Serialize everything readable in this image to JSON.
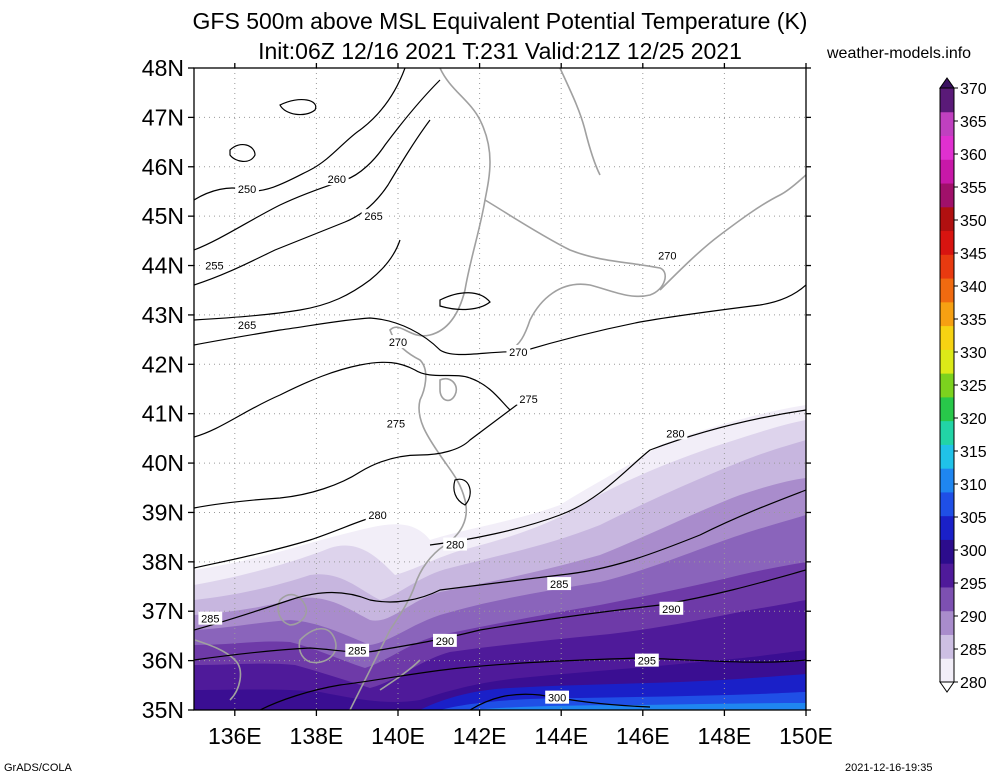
{
  "header": {
    "title_line1": "GFS 500m above MSL Equivalent Potential Temperature (K)",
    "title_line2": "Init:06Z 12/16 2021 T:231 Valid:21Z 12/25 2021",
    "site": "weather-models.info"
  },
  "footer": {
    "left": "GrADS/COLA",
    "right": "2021-12-16-19:35"
  },
  "chart_data": {
    "type": "heatmap",
    "title": "GFS 500m above MSL Equivalent Potential Temperature (K)",
    "subtitle": "Init:06Z 12/16 2021 T:231 Valid:21Z 12/25 2021",
    "xlabel": "",
    "ylabel": "",
    "xlim": [
      135,
      150
    ],
    "ylim": [
      35,
      48
    ],
    "x_ticks": [
      {
        "value": 136,
        "label": "136E"
      },
      {
        "value": 138,
        "label": "138E"
      },
      {
        "value": 140,
        "label": "140E"
      },
      {
        "value": 142,
        "label": "142E"
      },
      {
        "value": 144,
        "label": "144E"
      },
      {
        "value": 146,
        "label": "146E"
      },
      {
        "value": 148,
        "label": "148E"
      },
      {
        "value": 150,
        "label": "150E"
      }
    ],
    "y_ticks": [
      {
        "value": 35,
        "label": "35N"
      },
      {
        "value": 36,
        "label": "36N"
      },
      {
        "value": 37,
        "label": "37N"
      },
      {
        "value": 38,
        "label": "38N"
      },
      {
        "value": 39,
        "label": "39N"
      },
      {
        "value": 40,
        "label": "40N"
      },
      {
        "value": 41,
        "label": "41N"
      },
      {
        "value": 42,
        "label": "42N"
      },
      {
        "value": 43,
        "label": "43N"
      },
      {
        "value": 44,
        "label": "44N"
      },
      {
        "value": 45,
        "label": "45N"
      },
      {
        "value": 46,
        "label": "46N"
      },
      {
        "value": 47,
        "label": "47N"
      },
      {
        "value": 48,
        "label": "48N"
      }
    ],
    "grid": true,
    "legend": "right",
    "colorbar": {
      "levels": [
        280,
        285,
        290,
        295,
        300,
        305,
        310,
        315,
        320,
        325,
        330,
        335,
        340,
        345,
        350,
        355,
        360,
        365,
        370
      ],
      "colors": [
        "#f2eef8",
        "#cdbfe3",
        "#a98ccc",
        "#7d50b1",
        "#4f1a9a",
        "#2c0c8c",
        "#1a20c8",
        "#1f4fe6",
        "#1f86f0",
        "#20c2e8",
        "#22d4a6",
        "#28c84a",
        "#7cd21e",
        "#dcea18",
        "#f6d312",
        "#f6a012",
        "#f06a10",
        "#e83a10",
        "#d81410",
        "#b01010",
        "#a0106a",
        "#c818a8",
        "#e030d0",
        "#c040c0",
        "#5a1a78"
      ],
      "colors_above": [
        "#2a2a8a",
        "#3a3aa8"
      ]
    },
    "contours": [
      {
        "value": 250,
        "label": "250"
      },
      {
        "value": 255,
        "label": "255"
      },
      {
        "value": 260,
        "label": "260"
      },
      {
        "value": 265,
        "label": "265"
      },
      {
        "value": 270,
        "label": "270"
      },
      {
        "value": 275,
        "label": "275"
      },
      {
        "value": 280,
        "label": "280"
      },
      {
        "value": 285,
        "label": "285"
      },
      {
        "value": 290,
        "label": "290"
      },
      {
        "value": 295,
        "label": "295"
      },
      {
        "value": 300,
        "label": "300"
      }
    ],
    "contour_label_positions": [
      {
        "label": "250",
        "lon": 136.3,
        "lat": 45.55
      },
      {
        "label": "260",
        "lon": 138.5,
        "lat": 45.75
      },
      {
        "label": "265",
        "lon": 139.4,
        "lat": 45.0
      },
      {
        "label": "255",
        "lon": 135.5,
        "lat": 44.0
      },
      {
        "label": "270",
        "lon": 146.6,
        "lat": 44.2
      },
      {
        "label": "265",
        "lon": 136.3,
        "lat": 42.8
      },
      {
        "label": "270",
        "lon": 140.0,
        "lat": 42.45
      },
      {
        "label": "270",
        "lon": 142.95,
        "lat": 42.25
      },
      {
        "label": "275",
        "lon": 143.2,
        "lat": 41.3
      },
      {
        "label": "275",
        "lon": 139.95,
        "lat": 40.8
      },
      {
        "label": "280",
        "lon": 146.8,
        "lat": 40.6
      },
      {
        "label": "280",
        "lon": 139.5,
        "lat": 38.95
      },
      {
        "label": "280",
        "lon": 141.4,
        "lat": 38.35
      },
      {
        "label": "285",
        "lon": 143.95,
        "lat": 37.55
      },
      {
        "label": "285",
        "lon": 135.4,
        "lat": 36.85
      },
      {
        "label": "290",
        "lon": 146.7,
        "lat": 37.05
      },
      {
        "label": "290",
        "lon": 141.15,
        "lat": 36.4
      },
      {
        "label": "285",
        "lon": 139.0,
        "lat": 36.2
      },
      {
        "label": "295",
        "lon": 146.1,
        "lat": 36.0
      },
      {
        "label": "300",
        "lon": 143.9,
        "lat": 35.25
      }
    ]
  }
}
